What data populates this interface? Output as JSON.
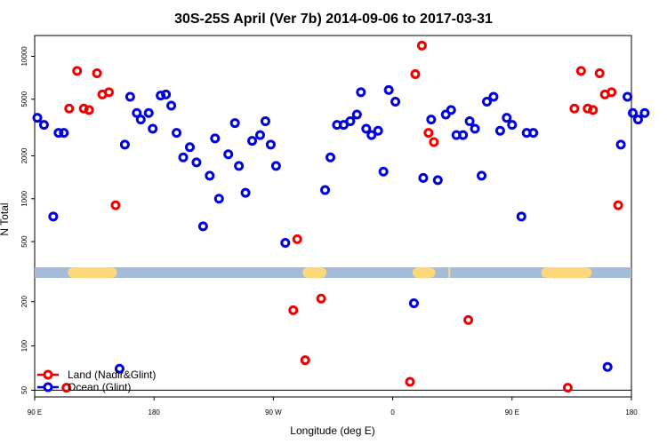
{
  "chart_data": {
    "type": "scatter",
    "title": "30S-25S April (Ver 7b)   2014-09-06 to 2017-03-31",
    "xlabel": "Longitude (deg E)",
    "ylabel": "N Total",
    "x_ticks": [
      {
        "value": 90,
        "label": "90 E"
      },
      {
        "value": 180,
        "label": "180"
      },
      {
        "value": 270,
        "label": "90 W"
      },
      {
        "value": 360,
        "label": "0"
      },
      {
        "value": 450,
        "label": "90 E"
      },
      {
        "value": 540,
        "label": "180"
      }
    ],
    "xlim": [
      90,
      540
    ],
    "y_scale": "log",
    "y_ticks_upper": [
      {
        "value": 500,
        "label": "500"
      },
      {
        "value": 1000,
        "label": "1000"
      },
      {
        "value": 2000,
        "label": "2000"
      },
      {
        "value": 5000,
        "label": "5000"
      },
      {
        "value": 10000,
        "label": "10000"
      }
    ],
    "y_ticks_lower": [
      {
        "value": 50,
        "label": "50"
      },
      {
        "value": 100,
        "label": "100"
      },
      {
        "value": 200,
        "label": "200"
      }
    ],
    "upper_ylim": [
      330,
      14000
    ],
    "lower_ylim": [
      45,
      290
    ],
    "reference_line_y": 50,
    "land_strip": {
      "ocean_color": "#a4bcd8",
      "land_color": "#fcd87a",
      "land_spans": [
        [
          115,
          152
        ],
        [
          292,
          310
        ],
        [
          375,
          392
        ],
        [
          402,
          403
        ],
        [
          472,
          510
        ]
      ]
    },
    "legend": {
      "position": "bottom-left",
      "entries": [
        {
          "label": "Land (Nadir&Glint)",
          "color": "#ee0000"
        },
        {
          "label": "Ocean (Glint)",
          "color": "#0000dd"
        }
      ]
    },
    "series": [
      {
        "name": "Land (Nadir&Glint)",
        "color": "#ee0000",
        "points": [
          [
            116,
            4300
          ],
          [
            122,
            7900
          ],
          [
            127,
            4300
          ],
          [
            131,
            4200
          ],
          [
            137,
            7600
          ],
          [
            141,
            5400
          ],
          [
            146,
            5600
          ],
          [
            151,
            900
          ],
          [
            285,
            175
          ],
          [
            288,
            520
          ],
          [
            294,
            80
          ],
          [
            306,
            210
          ],
          [
            373,
            57
          ],
          [
            377,
            7500
          ],
          [
            382,
            11900
          ],
          [
            387,
            2900
          ],
          [
            391,
            2500
          ],
          [
            417,
            150
          ],
          [
            492,
            52
          ],
          [
            497,
            4300
          ],
          [
            502,
            7900
          ],
          [
            507,
            4300
          ],
          [
            511,
            4200
          ],
          [
            516,
            7600
          ],
          [
            520,
            5400
          ],
          [
            525,
            5600
          ],
          [
            530,
            900
          ],
          [
            114,
            52
          ]
        ]
      },
      {
        "name": "Ocean (Glint)",
        "color": "#0000dd",
        "points": [
          [
            92,
            3700
          ],
          [
            97,
            3300
          ],
          [
            104,
            750
          ],
          [
            108,
            2900
          ],
          [
            112,
            2900
          ],
          [
            154,
            70
          ],
          [
            158,
            2400
          ],
          [
            162,
            5200
          ],
          [
            167,
            4000
          ],
          [
            170,
            3600
          ],
          [
            176,
            4000
          ],
          [
            179,
            3100
          ],
          [
            185,
            5300
          ],
          [
            189,
            5400
          ],
          [
            193,
            4500
          ],
          [
            197,
            2900
          ],
          [
            202,
            1950
          ],
          [
            207,
            2300
          ],
          [
            212,
            1800
          ],
          [
            217,
            640
          ],
          [
            222,
            1450
          ],
          [
            226,
            2650
          ],
          [
            229,
            1000
          ],
          [
            236,
            2050
          ],
          [
            241,
            3400
          ],
          [
            244,
            1700
          ],
          [
            249,
            1100
          ],
          [
            254,
            2550
          ],
          [
            260,
            2800
          ],
          [
            264,
            3500
          ],
          [
            268,
            2400
          ],
          [
            272,
            1700
          ],
          [
            279,
            490
          ],
          [
            309,
            1150
          ],
          [
            313,
            1950
          ],
          [
            318,
            3300
          ],
          [
            323,
            3300
          ],
          [
            328,
            3500
          ],
          [
            333,
            3900
          ],
          [
            336,
            5600
          ],
          [
            340,
            3100
          ],
          [
            344,
            2800
          ],
          [
            349,
            3000
          ],
          [
            353,
            1550
          ],
          [
            357,
            5800
          ],
          [
            362,
            4800
          ],
          [
            376,
            195
          ],
          [
            383,
            1400
          ],
          [
            389,
            3600
          ],
          [
            394,
            1350
          ],
          [
            400,
            3900
          ],
          [
            404,
            4200
          ],
          [
            408,
            2800
          ],
          [
            413,
            2800
          ],
          [
            418,
            3500
          ],
          [
            422,
            3100
          ],
          [
            427,
            1450
          ],
          [
            431,
            4800
          ],
          [
            436,
            5200
          ],
          [
            441,
            3000
          ],
          [
            446,
            3700
          ],
          [
            450,
            3300
          ],
          [
            457,
            750
          ],
          [
            461,
            2900
          ],
          [
            466,
            2900
          ],
          [
            522,
            72
          ],
          [
            532,
            2400
          ],
          [
            537,
            5200
          ],
          [
            541,
            4000
          ],
          [
            545,
            3600
          ],
          [
            550,
            4000
          ]
        ]
      }
    ]
  }
}
